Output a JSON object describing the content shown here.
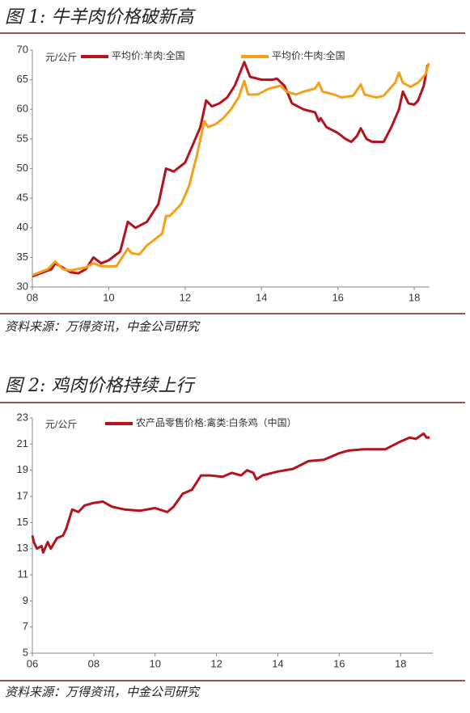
{
  "chart_data": [
    {
      "type": "line",
      "title": "图 1: 牛羊肉价格破新高",
      "source": "资料来源：万得资讯，中金公司研究",
      "y_label": "元/公斤",
      "xlim": [
        2008,
        2018.4
      ],
      "xticks": [
        {
          "value": 2008,
          "label": "08"
        },
        {
          "value": 2010,
          "label": "10"
        },
        {
          "value": 2012,
          "label": "12"
        },
        {
          "value": 2014,
          "label": "14"
        },
        {
          "value": 2016,
          "label": "16"
        },
        {
          "value": 2018,
          "label": "18"
        }
      ],
      "ylim": [
        30,
        70
      ],
      "yticks": [
        30,
        35,
        40,
        45,
        50,
        55,
        60,
        65,
        70
      ],
      "legend": "top",
      "series": [
        {
          "name": "平均价:羊肉:全国",
          "color": "#b5121b",
          "x": [
            2008,
            2008.5,
            2008.6,
            2009,
            2009.2,
            2009.4,
            2009.6,
            2009.8,
            2010,
            2010.3,
            2010.5,
            2010.7,
            2011,
            2011.3,
            2011.4,
            2011.5,
            2011.7,
            2012,
            2012.2,
            2012.4,
            2012.55,
            2012.7,
            2012.9,
            2013.1,
            2013.3,
            2013.55,
            2013.7,
            2014,
            2014.3,
            2014.4,
            2014.6,
            2014.8,
            2015.1,
            2015.4,
            2015.5,
            2015.55,
            2015.7,
            2016,
            2016.2,
            2016.35,
            2016.5,
            2016.6,
            2016.75,
            2016.9,
            2017.2,
            2017.4,
            2017.6,
            2017.7,
            2017.85,
            2018,
            2018.1,
            2018.25,
            2018.35
          ],
          "values": [
            31.8,
            33,
            34,
            32.5,
            32.3,
            33,
            35,
            34,
            34.5,
            36,
            41,
            40,
            41,
            44,
            47,
            50,
            49.5,
            51,
            54,
            57,
            61.5,
            60.5,
            61,
            62,
            64,
            68,
            65.5,
            65,
            65,
            65.2,
            64,
            61,
            60,
            59.5,
            58,
            58.5,
            57,
            56,
            55,
            54.5,
            55.5,
            56.8,
            55,
            54.5,
            54.5,
            57,
            60,
            63,
            61,
            60.8,
            61.5,
            64,
            67.5
          ]
        },
        {
          "name": "平均价:牛肉:全国",
          "color": "#f5a01a",
          "x": [
            2008,
            2008.4,
            2008.6,
            2008.8,
            2009,
            2009.4,
            2009.6,
            2009.8,
            2010.2,
            2010.5,
            2010.6,
            2010.8,
            2011,
            2011.4,
            2011.5,
            2011.6,
            2011.9,
            2012.1,
            2012.3,
            2012.5,
            2012.6,
            2012.8,
            2013,
            2013.2,
            2013.4,
            2013.55,
            2013.65,
            2013.9,
            2014.2,
            2014.5,
            2014.65,
            2014.9,
            2015.1,
            2015.4,
            2015.5,
            2015.6,
            2015.9,
            2016.1,
            2016.4,
            2016.6,
            2016.7,
            2017,
            2017.2,
            2017.5,
            2017.6,
            2017.7,
            2017.9,
            2018.1,
            2018.3,
            2018.38
          ],
          "values": [
            32,
            33,
            34.3,
            33,
            32.8,
            33.3,
            34,
            33.5,
            33.5,
            36.5,
            35.7,
            35.5,
            37,
            39,
            42,
            42,
            44,
            47,
            52,
            58,
            57,
            57.5,
            58.5,
            60,
            62,
            64.8,
            62.5,
            62.5,
            63.5,
            64,
            63,
            62.5,
            63,
            63.5,
            64.5,
            63,
            62.5,
            62,
            62.3,
            64.2,
            62.5,
            62,
            62.3,
            64.5,
            66.2,
            64.5,
            63.8,
            64.5,
            66,
            67.8
          ]
        }
      ]
    },
    {
      "type": "line",
      "title": "图 2: 鸡肉价格持续上行",
      "source": "资料来源：万得资讯，中金公司研究",
      "y_label": "元/公斤",
      "xlim": [
        2006,
        2019.05
      ],
      "xticks": [
        {
          "value": 2006,
          "label": "06"
        },
        {
          "value": 2008,
          "label": "08"
        },
        {
          "value": 2010,
          "label": "10"
        },
        {
          "value": 2012,
          "label": "12"
        },
        {
          "value": 2014,
          "label": "14"
        },
        {
          "value": 2016,
          "label": "16"
        },
        {
          "value": 2018,
          "label": "18"
        }
      ],
      "ylim": [
        5,
        23
      ],
      "yticks": [
        5,
        7,
        9,
        11,
        13,
        15,
        17,
        19,
        21,
        23
      ],
      "legend": "top",
      "series": [
        {
          "name": "农产品零售价格:禽类:白条鸡（中国）",
          "color": "#b5121b",
          "x": [
            2006,
            2006.05,
            2006.15,
            2006.3,
            2006.35,
            2006.5,
            2006.6,
            2006.8,
            2007,
            2007.1,
            2007.3,
            2007.5,
            2007.7,
            2008,
            2008.3,
            2008.6,
            2009,
            2009.5,
            2010,
            2010.4,
            2010.6,
            2010.9,
            2011.2,
            2011.5,
            2011.8,
            2012.2,
            2012.5,
            2012.8,
            2013,
            2013.2,
            2013.3,
            2013.5,
            2014,
            2014.5,
            2015,
            2015.5,
            2016,
            2016.3,
            2016.8,
            2017.2,
            2017.5,
            2018,
            2018.3,
            2018.5,
            2018.75,
            2018.85,
            2018.95
          ],
          "values": [
            14,
            13.5,
            13,
            13.2,
            12.7,
            13.5,
            13,
            13.8,
            14,
            14.5,
            16,
            15.8,
            16.3,
            16.5,
            16.6,
            16.2,
            16,
            15.9,
            16.1,
            15.8,
            16.2,
            17.2,
            17.5,
            18.6,
            18.6,
            18.5,
            18.8,
            18.6,
            19,
            18.8,
            18.3,
            18.6,
            18.9,
            19.1,
            19.7,
            19.8,
            20.3,
            20.5,
            20.6,
            20.6,
            20.6,
            21.2,
            21.5,
            21.4,
            21.8,
            21.5,
            21.5
          ]
        }
      ]
    }
  ]
}
